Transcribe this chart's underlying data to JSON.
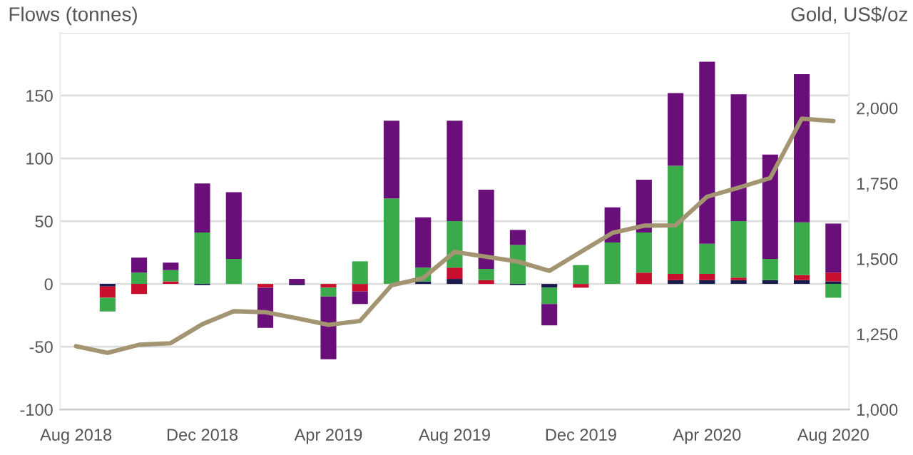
{
  "chart_data": {
    "type": "bar",
    "stacked": true,
    "ylabel": "Flows (tonnes)",
    "y2label": "Gold, US$/oz",
    "categories": [
      "Aug 2018",
      null,
      null,
      null,
      "Dec 2018",
      null,
      null,
      null,
      "Apr 2019",
      null,
      null,
      null,
      "Aug 2019",
      null,
      null,
      null,
      "Dec 2019",
      null,
      null,
      null,
      "Apr 2020",
      null,
      null,
      null,
      "Aug 2020"
    ],
    "series": [
      {
        "color": "#1c1b4d",
        "values": [
          null,
          -2,
          0,
          0,
          -1,
          0,
          0,
          -1,
          0,
          0,
          0,
          2,
          4,
          0,
          -1,
          -3,
          0,
          0,
          0,
          3,
          3,
          3,
          3,
          3,
          2
        ]
      },
      {
        "color": "#c8102e",
        "values": [
          null,
          -9,
          -8,
          2,
          0,
          0,
          -3,
          0,
          -3,
          -6,
          null,
          0,
          9,
          3,
          0,
          0,
          -3,
          0,
          9,
          5,
          5,
          2,
          0,
          4,
          7
        ]
      },
      {
        "color": "#3aaa4a",
        "values": [
          null,
          -11,
          9,
          9,
          41,
          20,
          0,
          0,
          -7,
          18,
          68,
          11,
          37,
          9,
          31,
          -13,
          15,
          33,
          32,
          86,
          24,
          45,
          17,
          42,
          -11
        ]
      },
      {
        "color": "#6a0f7a",
        "values": [
          null,
          0,
          12,
          6,
          39,
          53,
          -32,
          4,
          -50,
          -10,
          62,
          40,
          80,
          63,
          12,
          -17,
          0,
          28,
          42,
          58,
          145,
          101,
          83,
          118,
          39
        ]
      },
      {
        "type": "line",
        "axis": "y2",
        "color": "#a39572",
        "values": [
          1210,
          1188,
          1215,
          1220,
          1283,
          1326,
          1323,
          1303,
          1281,
          1294,
          1412,
          1436,
          1523,
          1507,
          1491,
          1460,
          1523,
          1586,
          1610,
          1611,
          1706,
          1736,
          1768,
          1965,
          1957
        ]
      }
    ],
    "ylim": [
      -100,
      200
    ],
    "yticks": [
      -100,
      -50,
      0,
      50,
      100,
      150,
      {
        "value": 200,
        "label": null
      }
    ],
    "y2lim": [
      1000,
      2250
    ],
    "y2ticks": [
      {
        "value": 1000,
        "label": "1,000"
      },
      {
        "value": 1250,
        "label": "1,250"
      },
      {
        "value": 1500,
        "label": "1,500"
      },
      {
        "value": 1750,
        "label": "1,750"
      },
      {
        "value": 2000,
        "label": "2,000"
      }
    ],
    "grid": "y"
  }
}
